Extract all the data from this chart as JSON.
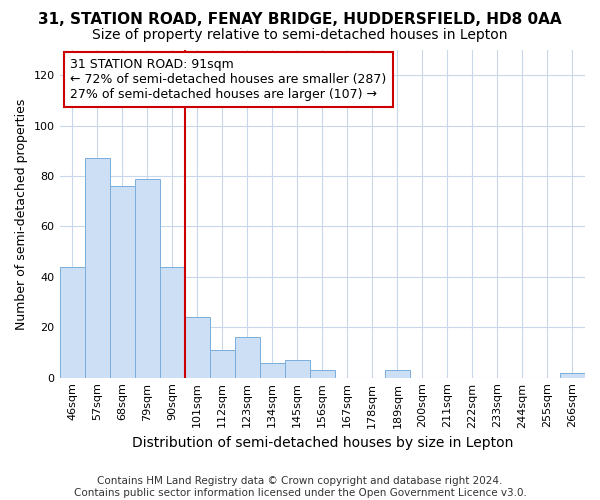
{
  "title_line1": "31, STATION ROAD, FENAY BRIDGE, HUDDERSFIELD, HD8 0AA",
  "title_line2": "Size of property relative to semi-detached houses in Lepton",
  "xlabel": "Distribution of semi-detached houses by size in Lepton",
  "ylabel": "Number of semi-detached properties",
  "categories": [
    "46sqm",
    "57sqm",
    "68sqm",
    "79sqm",
    "90sqm",
    "101sqm",
    "112sqm",
    "123sqm",
    "134sqm",
    "145sqm",
    "156sqm",
    "167sqm",
    "178sqm",
    "189sqm",
    "200sqm",
    "211sqm",
    "222sqm",
    "233sqm",
    "244sqm",
    "255sqm",
    "266sqm"
  ],
  "values": [
    44,
    87,
    76,
    79,
    44,
    24,
    11,
    16,
    6,
    7,
    3,
    0,
    0,
    3,
    0,
    0,
    0,
    0,
    0,
    0,
    2
  ],
  "bar_color": "#ccdff5",
  "bar_edge_color": "#7aaedc",
  "highlight_index": 4,
  "highlight_color": "#cc0000",
  "ylim": [
    0,
    130
  ],
  "yticks": [
    0,
    20,
    40,
    60,
    80,
    100,
    120
  ],
  "annotation_title": "31 STATION ROAD: 91sqm",
  "annotation_line1": "← 72% of semi-detached houses are smaller (287)",
  "annotation_line2": "27% of semi-detached houses are larger (107) →",
  "annotation_box_facecolor": "#ffffff",
  "annotation_box_edgecolor": "#cc0000",
  "footer_line1": "Contains HM Land Registry data © Crown copyright and database right 2024.",
  "footer_line2": "Contains public sector information licensed under the Open Government Licence v3.0.",
  "background_color": "#ffffff",
  "grid_color": "#c8d8ea",
  "title_fontsize": 11,
  "subtitle_fontsize": 10,
  "xlabel_fontsize": 10,
  "ylabel_fontsize": 9,
  "tick_fontsize": 8,
  "annotation_fontsize": 9,
  "footer_fontsize": 7.5
}
